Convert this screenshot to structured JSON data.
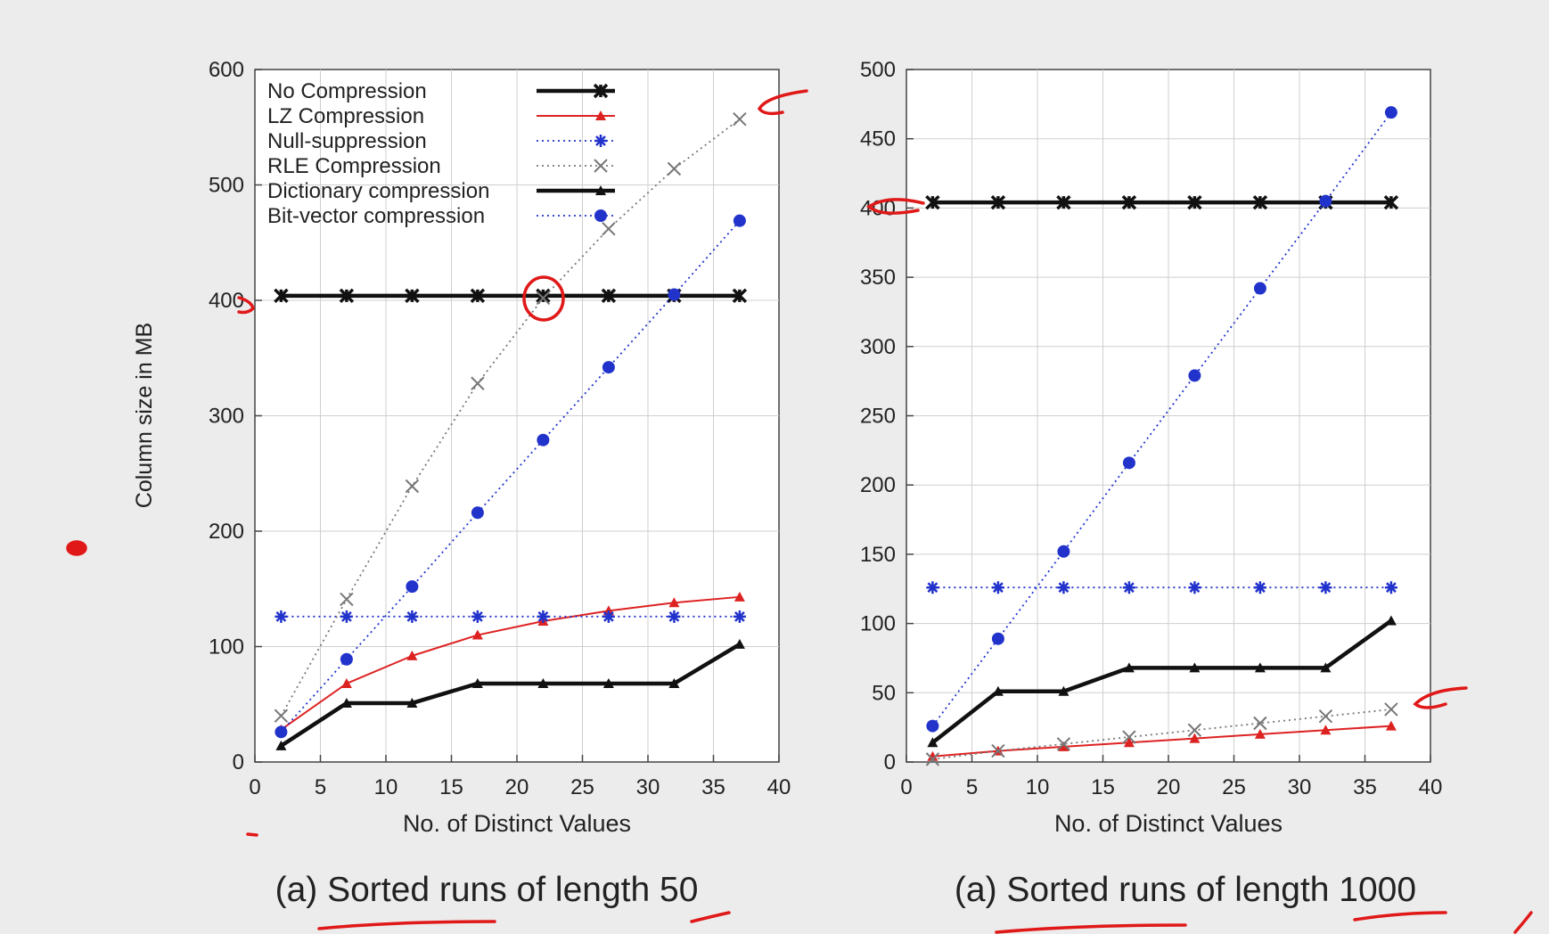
{
  "chart_data": [
    {
      "type": "line",
      "title": "",
      "caption": "(a) Sorted runs of length 50",
      "xlabel": "No. of Distinct Values",
      "ylabel": "Column size in MB",
      "xlim": [
        0,
        40
      ],
      "ylim": [
        0,
        600
      ],
      "x_ticks": [
        0,
        5,
        10,
        15,
        20,
        25,
        30,
        35,
        40
      ],
      "y_ticks": [
        0,
        100,
        200,
        300,
        400,
        500,
        600
      ],
      "grid": true,
      "legend": "top-left",
      "x": [
        2,
        7,
        12,
        17,
        22,
        27,
        32,
        37
      ],
      "series": [
        {
          "name": "No Compression",
          "style": "solid-thick",
          "marker": "asterisk-x",
          "color": "#111111",
          "values": [
            404,
            404,
            404,
            404,
            404,
            404,
            404,
            404
          ]
        },
        {
          "name": "LZ Compression",
          "style": "solid",
          "marker": "triangle",
          "color": "#dd2222",
          "values": [
            28,
            68,
            92,
            110,
            122,
            131,
            138,
            143
          ]
        },
        {
          "name": "Null-suppression",
          "style": "dotted",
          "marker": "asterisk",
          "color": "#2233cc",
          "values": [
            126,
            126,
            126,
            126,
            126,
            126,
            126,
            126
          ]
        },
        {
          "name": "RLE Compression",
          "style": "dotted",
          "marker": "x",
          "color": "#777777",
          "values": [
            40,
            141,
            239,
            328,
            402,
            462,
            514,
            557
          ]
        },
        {
          "name": "Dictionary compression",
          "style": "solid-thick",
          "marker": "triangle",
          "color": "#111111",
          "values": [
            14,
            51,
            51,
            68,
            68,
            68,
            68,
            102
          ]
        },
        {
          "name": "Bit-vector compression",
          "style": "dotted",
          "marker": "circle",
          "color": "#2233cc",
          "values": [
            26,
            89,
            152,
            216,
            279,
            342,
            405,
            469
          ]
        }
      ]
    },
    {
      "type": "line",
      "title": "",
      "caption": "(a) Sorted runs of length 1000",
      "xlabel": "No. of Distinct Values",
      "ylabel": "",
      "xlim": [
        0,
        40
      ],
      "ylim": [
        0,
        500
      ],
      "x_ticks": [
        0,
        5,
        10,
        15,
        20,
        25,
        30,
        35,
        40
      ],
      "y_ticks": [
        0,
        50,
        100,
        150,
        200,
        250,
        300,
        350,
        400,
        450,
        500
      ],
      "grid": true,
      "legend": "none",
      "x": [
        2,
        7,
        12,
        17,
        22,
        27,
        32,
        37
      ],
      "series": [
        {
          "style": "solid-thick",
          "marker": "asterisk-x",
          "color": "#111111",
          "values": [
            404,
            404,
            404,
            404,
            404,
            404,
            404,
            404
          ]
        },
        {
          "style": "solid",
          "marker": "triangle",
          "color": "#dd2222",
          "values": [
            4,
            8,
            11,
            14,
            17,
            20,
            23,
            26
          ]
        },
        {
          "style": "dotted",
          "marker": "asterisk",
          "color": "#2233cc",
          "values": [
            126,
            126,
            126,
            126,
            126,
            126,
            126,
            126
          ]
        },
        {
          "style": "dotted",
          "marker": "x",
          "color": "#777777",
          "values": [
            2,
            8,
            13,
            18,
            23,
            28,
            33,
            38
          ]
        },
        {
          "style": "solid-thick",
          "marker": "triangle",
          "color": "#111111",
          "values": [
            14,
            51,
            51,
            68,
            68,
            68,
            68,
            102
          ]
        },
        {
          "style": "dotted",
          "marker": "circle",
          "color": "#2233cc",
          "values": [
            26,
            89,
            152,
            216,
            279,
            342,
            405,
            469
          ]
        }
      ]
    }
  ]
}
